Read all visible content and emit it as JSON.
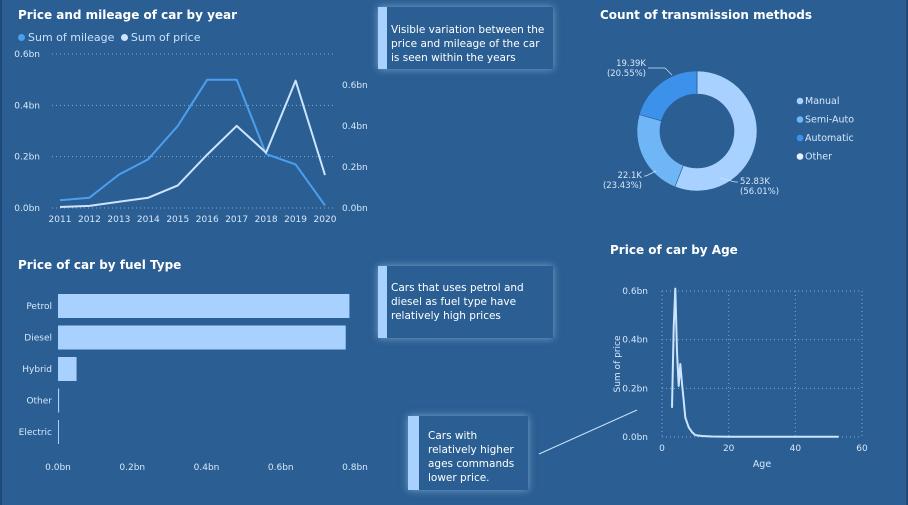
{
  "charts": {
    "line": {
      "title": "Price and mileage of car by year"
    },
    "fuel": {
      "title": "Price of car by fuel Type"
    },
    "donut": {
      "title": "Count of transmission methods"
    },
    "age": {
      "title": "Price of car by Age"
    }
  },
  "notes": {
    "year": "Visible variation between the price and mileage of the car is seen within the years",
    "fuel": "Cars that uses petrol and diesel as fuel type have  relatively high prices",
    "age": "Cars with relatively higher ages commands lower price."
  },
  "colors": {
    "background": "#2b5f93",
    "mileage": "#4a9ff0",
    "price": "#cbe4ff",
    "bar": "#a8d1ff",
    "note_accent": "#a8d1ff"
  },
  "chart_data": [
    {
      "id": "line",
      "type": "line",
      "title": "Price and mileage of car by year",
      "legend": [
        "Sum of mileage",
        "Sum of price"
      ],
      "legend_position": "top-left",
      "categories": [
        "2011",
        "2012",
        "2013",
        "2014",
        "2015",
        "2016",
        "2017",
        "2018",
        "2019",
        "2020"
      ],
      "series": [
        {
          "name": "Sum of mileage",
          "axis": "left",
          "values": [
            0.03,
            0.04,
            0.13,
            0.19,
            0.32,
            0.5,
            0.5,
            0.21,
            0.17,
            0.01
          ]
        },
        {
          "name": "Sum of price",
          "axis": "right",
          "values": [
            0.005,
            0.01,
            0.03,
            0.05,
            0.11,
            0.26,
            0.4,
            0.27,
            0.62,
            0.16
          ]
        }
      ],
      "y_left": {
        "ticks": [
          "0.0bn",
          "0.2bn",
          "0.4bn",
          "0.6bn"
        ],
        "range": [
          0,
          0.6
        ]
      },
      "y_right": {
        "ticks": [
          "0.0bn",
          "0.2bn",
          "0.4bn",
          "0.6bn"
        ],
        "range": [
          0,
          0.75
        ]
      },
      "grid": true
    },
    {
      "id": "fuel",
      "type": "bar",
      "title": "Price of car by fuel Type",
      "orientation": "horizontal",
      "categories": [
        "Petrol",
        "Diesel",
        "Hybrid",
        "Other",
        "Electric"
      ],
      "values": [
        0.785,
        0.775,
        0.05,
        0.003,
        0.001
      ],
      "x_ticks": [
        "0.0bn",
        "0.2bn",
        "0.4bn",
        "0.6bn",
        "0.8bn"
      ],
      "xlim": [
        0,
        0.8
      ],
      "grid": false
    },
    {
      "id": "donut",
      "type": "pie",
      "title": "Count of transmission methods",
      "donut": true,
      "slices": [
        {
          "name": "Manual",
          "value": 52.83,
          "label": "52.83K",
          "pct": "(56.01%)",
          "color": "#a8d1ff"
        },
        {
          "name": "Semi-Auto",
          "value": 22.1,
          "label": "22.1K",
          "pct": "(23.43%)",
          "color": "#6fb6f7"
        },
        {
          "name": "Automatic",
          "value": 19.39,
          "label": "19.39K",
          "pct": "(20.55%)",
          "color": "#3c92ea"
        },
        {
          "name": "Other",
          "value": 0.01,
          "label": "",
          "pct": "",
          "color": "#e8f3ff"
        }
      ],
      "legend": [
        "Manual",
        "Semi-Auto",
        "Automatic",
        "Other"
      ],
      "legend_position": "right"
    },
    {
      "id": "age",
      "type": "line",
      "title": "Price of car by Age",
      "xlabel": "Age",
      "ylabel": "Sum of price",
      "x": [
        3,
        3.5,
        4,
        4.5,
        5,
        5.5,
        6,
        6.5,
        7,
        8,
        9,
        10,
        12,
        15,
        20,
        30,
        40,
        53
      ],
      "y": [
        0.12,
        0.45,
        0.61,
        0.35,
        0.21,
        0.3,
        0.22,
        0.15,
        0.08,
        0.04,
        0.02,
        0.008,
        0.004,
        0.002,
        0.001,
        0.001,
        0.001,
        0.001
      ],
      "xlim": [
        0,
        60
      ],
      "ylim": [
        0,
        0.6
      ],
      "x_ticks": [
        "0",
        "20",
        "40",
        "60"
      ],
      "y_ticks": [
        "0.0bn",
        "0.2bn",
        "0.4bn",
        "0.6bn"
      ],
      "grid": true
    }
  ]
}
